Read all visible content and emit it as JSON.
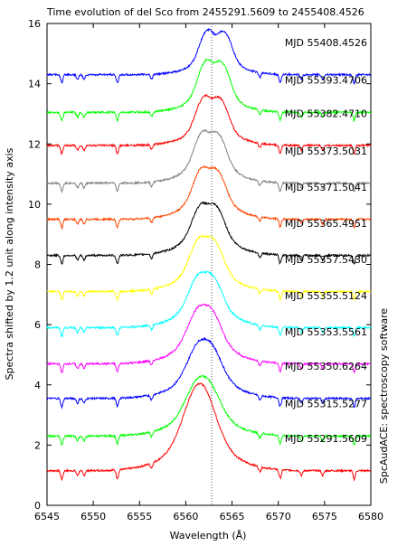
{
  "chart_data": {
    "type": "line",
    "title": "Time evolution of del Sco from 2455291.5609 to 2455408.4526",
    "xlabel": "Wavelength (Å)",
    "ylabel": "Spectra shifted by 1.2 unit along intensity axis",
    "side_label": "SpcAudACE: spectroscopy software",
    "xlim": [
      6545,
      6580
    ],
    "ylim": [
      0,
      16
    ],
    "xticks": [
      6545,
      6550,
      6555,
      6560,
      6565,
      6570,
      6575,
      6580
    ],
    "yticks": [
      0,
      2,
      4,
      6,
      8,
      10,
      12,
      14,
      16
    ],
    "reference_line_x": 6562.8,
    "grid": false,
    "legend": "none",
    "series": [
      {
        "name": "MJD 55291.5609",
        "color": "#ff0000",
        "baseline": 1.15,
        "peak_height": 2.9,
        "peak_center": 6561.5
      },
      {
        "name": "MJD 55315.5277",
        "color": "#00ff00",
        "baseline": 2.3,
        "peak_height": 2.0,
        "peak_center": 6561.8
      },
      {
        "name": "MJD 55350.6264",
        "color": "#0000ff",
        "baseline": 3.55,
        "peak_height": 2.0,
        "peak_center": 6562.0
      },
      {
        "name": "MJD 55353.5561",
        "color": "#ff00ff",
        "baseline": 4.7,
        "peak_height": 2.0,
        "peak_center": 6562.0
      },
      {
        "name": "MJD 55355.5124",
        "color": "#00ffff",
        "baseline": 5.9,
        "peak_height": 1.9,
        "peak_center": 6562.1
      },
      {
        "name": "MJD 55357.5430",
        "color": "#ffff00",
        "baseline": 7.1,
        "peak_height": 1.9,
        "peak_center": 6562.2
      },
      {
        "name": "MJD 55365.4951",
        "color": "#000000",
        "baseline": 8.3,
        "peak_height": 1.8,
        "peak_center": 6562.4
      },
      {
        "name": "MJD 55371.5041",
        "color": "#ff4500",
        "baseline": 9.5,
        "peak_height": 1.8,
        "peak_center": 6562.5
      },
      {
        "name": "MJD 55373.5031",
        "color": "#808080",
        "baseline": 10.7,
        "peak_height": 1.8,
        "peak_center": 6562.6
      },
      {
        "name": "MJD 55382.4710",
        "color": "#ff0000",
        "baseline": 11.95,
        "peak_height": 1.7,
        "peak_center": 6562.8
      },
      {
        "name": "MJD 55393.4706",
        "color": "#00ff00",
        "baseline": 13.05,
        "peak_height": 1.8,
        "peak_center": 6563.0
      },
      {
        "name": "MJD 55408.4526",
        "color": "#0000ff",
        "baseline": 14.3,
        "peak_height": 1.5,
        "peak_center": 6563.2
      }
    ],
    "absorption_lines": [
      6546.6,
      6548.3,
      6549.0,
      6552.6,
      6556.3,
      6568.0,
      6570.2,
      6572.5,
      6574.8,
      6578.2
    ]
  }
}
